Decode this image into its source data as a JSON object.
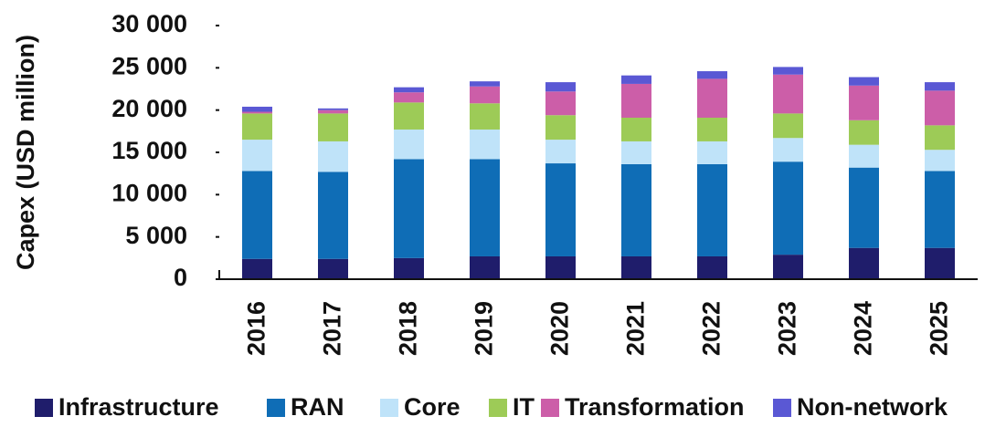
{
  "chart_data": {
    "type": "stacked_bar",
    "y_label": "Capex (USD million)",
    "categories": [
      "2016",
      "2017",
      "2018",
      "2019",
      "2020",
      "2021",
      "2022",
      "2023",
      "2024",
      "2025"
    ],
    "series": [
      {
        "name": "Infrastructure",
        "color": "#1f1d6b",
        "values": [
          2400,
          2400,
          2500,
          2700,
          2700,
          2700,
          2700,
          2900,
          3700,
          3700
        ]
      },
      {
        "name": "RAN",
        "color": "#0f6db6",
        "values": [
          10400,
          10300,
          11700,
          11500,
          11000,
          10900,
          10900,
          11000,
          9500,
          9100
        ]
      },
      {
        "name": "Core",
        "color": "#bfe3f9",
        "values": [
          3700,
          3600,
          3500,
          3500,
          2800,
          2700,
          2700,
          2800,
          2700,
          2500
        ]
      },
      {
        "name": "IT",
        "color": "#9dcb57",
        "values": [
          3100,
          3300,
          3200,
          3100,
          2900,
          2800,
          2800,
          2900,
          2900,
          2900
        ]
      },
      {
        "name": "Transformation",
        "color": "#cc5ea8",
        "values": [
          200,
          400,
          1200,
          2000,
          2800,
          4000,
          4600,
          4600,
          4100,
          4100
        ]
      },
      {
        "name": "Non-network",
        "color": "#5a58d4",
        "values": [
          600,
          200,
          600,
          600,
          1100,
          1000,
          900,
          900,
          1000,
          1000
        ]
      }
    ],
    "ylim": [
      0,
      30000
    ],
    "yticks": [
      0,
      {
        "value": 5000,
        "label": "5 000"
      },
      {
        "value": 10000,
        "label": "10 000"
      },
      {
        "value": 15000,
        "label": "15 000"
      },
      {
        "value": 20000,
        "label": "20 000"
      },
      {
        "value": 25000,
        "label": "25 000"
      },
      {
        "value": 30000,
        "label": "30 000"
      }
    ],
    "legend": "bottom"
  }
}
